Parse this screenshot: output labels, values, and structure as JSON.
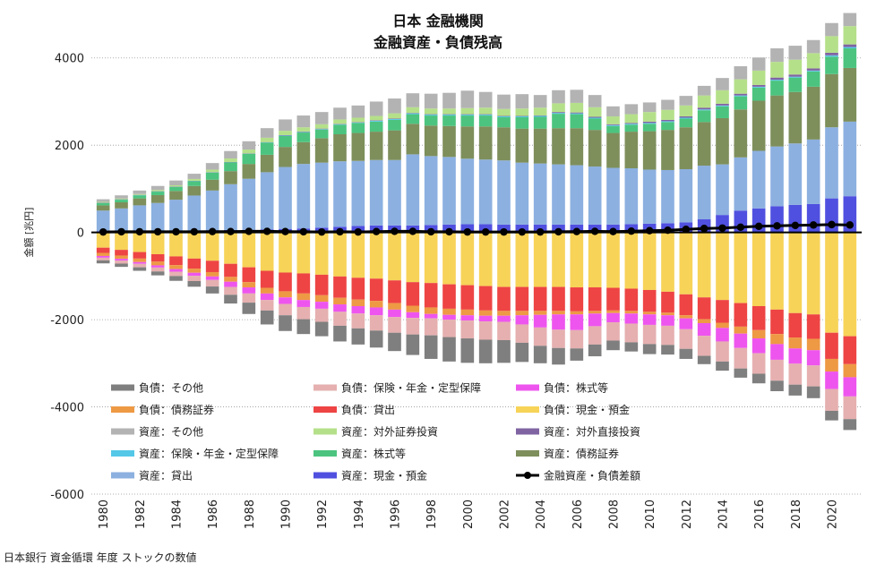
{
  "chart_data": {
    "type": "bar",
    "stacked": true,
    "title": "日本 金融機関",
    "subtitle": "金融資産・負債残高",
    "ylabel": "金額 [兆円]",
    "xlabel": "",
    "source_note": "日本銀行 資金循環 年度 ストックの数値",
    "ylim": [
      -6000,
      5000
    ],
    "yticks": [
      -6000,
      -4000,
      -2000,
      0,
      2000,
      4000
    ],
    "grid": true,
    "legend_position": "lower-left inside",
    "categories": [
      "1980",
      "1981",
      "1982",
      "1983",
      "1984",
      "1985",
      "1986",
      "1987",
      "1988",
      "1989",
      "1990",
      "1991",
      "1992",
      "1993",
      "1994",
      "1995",
      "1996",
      "1997",
      "1998",
      "1999",
      "2000",
      "2001",
      "2002",
      "2003",
      "2004",
      "2005",
      "2006",
      "2007",
      "2008",
      "2009",
      "2010",
      "2011",
      "2012",
      "2013",
      "2014",
      "2015",
      "2016",
      "2017",
      "2018",
      "2019",
      "2020",
      "2021"
    ],
    "xtick_labels": [
      "1980",
      "1982",
      "1984",
      "1986",
      "1988",
      "1990",
      "1992",
      "1994",
      "1996",
      "1998",
      "2000",
      "2002",
      "2004",
      "2006",
      "2008",
      "2010",
      "2012",
      "2014",
      "2016",
      "2018",
      "2020"
    ],
    "legend": [
      "負債：その他",
      "負債：保険・年金・定型保障",
      "負債：株式等",
      "負債：債務証券",
      "負債：貸出",
      "負債：現金・預金",
      "資産：その他",
      "資産：対外証券投資",
      "資産：対外直接投資",
      "資産：保険・年金・定型保障",
      "資産：株式等",
      "資産：債務証券",
      "資産：貸出",
      "資産：現金・預金",
      "金融資産・負債差額"
    ],
    "colors": {
      "負債：その他": "#7f7f7f",
      "負債：保険・年金・定型保障": "#e6b0b0",
      "負債：株式等": "#ee55ee",
      "負債：債務証券": "#ee9944",
      "負債：貸出": "#ee4444",
      "負債：現金・預金": "#f7d358",
      "資産：その他": "#b3b3b3",
      "資産：対外証券投資": "#b5e08a",
      "資産：対外直接投資": "#8064a2",
      "資産：保険・年金・定型保障": "#55c8e8",
      "資産：株式等": "#4cc47f",
      "資産：債務証券": "#7e8f5c",
      "資産：貸出": "#8cb0e0",
      "資産：現金・預金": "#5050e0",
      "金融資産・負債差額": "#000000"
    },
    "asset_series": [
      {
        "name": "資産：現金・預金",
        "values": [
          30,
          30,
          30,
          35,
          40,
          45,
          50,
          55,
          60,
          70,
          80,
          90,
          110,
          130,
          150,
          160,
          160,
          160,
          170,
          180,
          190,
          190,
          180,
          180,
          180,
          180,
          180,
          180,
          180,
          190,
          200,
          210,
          230,
          300,
          400,
          500,
          550,
          600,
          630,
          650,
          780,
          830
        ]
      },
      {
        "name": "資産：貸出",
        "values": [
          470,
          520,
          590,
          640,
          710,
          800,
          910,
          1050,
          1170,
          1310,
          1420,
          1480,
          1490,
          1500,
          1490,
          1500,
          1500,
          1630,
          1580,
          1550,
          1500,
          1480,
          1470,
          1420,
          1400,
          1380,
          1360,
          1330,
          1300,
          1280,
          1240,
          1220,
          1220,
          1230,
          1160,
          1220,
          1320,
          1370,
          1410,
          1480,
          1630,
          1710
        ]
      },
      {
        "name": "資産：債務証券",
        "values": [
          120,
          140,
          160,
          180,
          200,
          220,
          250,
          300,
          340,
          400,
          460,
          500,
          560,
          620,
          640,
          650,
          680,
          700,
          700,
          710,
          740,
          760,
          760,
          780,
          800,
          830,
          850,
          840,
          800,
          840,
          880,
          920,
          960,
          1000,
          1060,
          1100,
          1150,
          1170,
          1180,
          1210,
          1220,
          1230
        ]
      },
      {
        "name": "資産：株式等",
        "values": [
          50,
          60,
          70,
          80,
          90,
          110,
          160,
          200,
          230,
          280,
          250,
          220,
          200,
          220,
          230,
          230,
          240,
          220,
          230,
          240,
          250,
          250,
          230,
          260,
          270,
          330,
          320,
          260,
          160,
          160,
          170,
          180,
          200,
          270,
          270,
          300,
          300,
          340,
          330,
          350,
          400,
          450
        ]
      },
      {
        "name": "資産：保険・年金・定型保障",
        "values": [
          5,
          5,
          5,
          5,
          5,
          5,
          5,
          5,
          5,
          5,
          10,
          10,
          10,
          10,
          10,
          20,
          20,
          20,
          20,
          20,
          20,
          20,
          20,
          20,
          20,
          20,
          20,
          20,
          20,
          20,
          20,
          20,
          20,
          20,
          20,
          20,
          20,
          20,
          20,
          20,
          30,
          30
        ]
      },
      {
        "name": "資産：対外直接投資",
        "values": [
          5,
          5,
          5,
          5,
          5,
          5,
          5,
          5,
          5,
          5,
          10,
          10,
          10,
          10,
          10,
          10,
          10,
          10,
          10,
          10,
          10,
          10,
          10,
          10,
          10,
          20,
          20,
          20,
          20,
          20,
          30,
          30,
          30,
          40,
          40,
          40,
          40,
          50,
          50,
          50,
          60,
          60
        ]
      },
      {
        "name": "資産：対外証券投資",
        "values": [
          20,
          20,
          20,
          30,
          30,
          40,
          60,
          80,
          90,
          100,
          100,
          100,
          100,
          100,
          100,
          100,
          120,
          130,
          130,
          130,
          140,
          150,
          160,
          170,
          180,
          200,
          220,
          220,
          180,
          200,
          220,
          230,
          250,
          280,
          310,
          330,
          330,
          360,
          340,
          350,
          380,
          420
        ]
      },
      {
        "name": "資産：その他",
        "values": [
          60,
          70,
          80,
          90,
          110,
          120,
          150,
          170,
          190,
          220,
          260,
          270,
          280,
          270,
          280,
          330,
          340,
          320,
          340,
          360,
          400,
          360,
          330,
          330,
          290,
          300,
          300,
          280,
          230,
          230,
          220,
          230,
          220,
          220,
          280,
          300,
          300,
          310,
          320,
          300,
          300,
          300
        ]
      }
    ],
    "liability_series": [
      {
        "name": "負債：現金・預金",
        "values": [
          -350,
          -400,
          -450,
          -500,
          -550,
          -600,
          -650,
          -720,
          -800,
          -880,
          -920,
          -940,
          -970,
          -1010,
          -1040,
          -1060,
          -1100,
          -1140,
          -1160,
          -1190,
          -1210,
          -1230,
          -1250,
          -1250,
          -1250,
          -1250,
          -1260,
          -1260,
          -1270,
          -1290,
          -1320,
          -1360,
          -1420,
          -1490,
          -1550,
          -1620,
          -1690,
          -1770,
          -1850,
          -1880,
          -2300,
          -2380
        ]
      },
      {
        "name": "負債：貸出",
        "values": [
          -120,
          -130,
          -150,
          -170,
          -200,
          -230,
          -260,
          -300,
          -340,
          -390,
          -430,
          -460,
          -470,
          -490,
          -500,
          -510,
          -520,
          -540,
          -560,
          -560,
          -560,
          -560,
          -550,
          -550,
          -550,
          -550,
          -550,
          -540,
          -520,
          -510,
          -500,
          -480,
          -480,
          -500,
          -520,
          -540,
          -550,
          -560,
          -560,
          -560,
          -600,
          -640
        ]
      },
      {
        "name": "負債：債務証券",
        "values": [
          -70,
          -75,
          -80,
          -85,
          -90,
          -95,
          -100,
          -110,
          -120,
          -130,
          -140,
          -150,
          -150,
          -150,
          -150,
          -150,
          -150,
          -150,
          -150,
          -140,
          -130,
          -120,
          -110,
          -100,
          -90,
          -80,
          -70,
          -60,
          -60,
          -60,
          -60,
          -60,
          -70,
          -90,
          -120,
          -160,
          -190,
          -230,
          -250,
          -260,
          -290,
          -300
        ]
      },
      {
        "name": "負債：株式等",
        "values": [
          -40,
          -40,
          -40,
          -50,
          -60,
          -70,
          -80,
          -120,
          -140,
          -150,
          -150,
          -160,
          -160,
          -170,
          -170,
          -180,
          -170,
          -130,
          -100,
          -110,
          -120,
          -130,
          -140,
          -210,
          -290,
          -350,
          -360,
          -290,
          -210,
          -230,
          -240,
          -240,
          -250,
          -290,
          -310,
          -330,
          -340,
          -360,
          -350,
          -350,
          -400,
          -440
        ]
      },
      {
        "name": "負債：保険・年金・定型保障",
        "values": [
          -60,
          -70,
          -80,
          -90,
          -100,
          -120,
          -150,
          -180,
          -210,
          -240,
          -260,
          -280,
          -300,
          -320,
          -340,
          -350,
          -360,
          -380,
          -390,
          -400,
          -410,
          -420,
          -420,
          -420,
          -420,
          -420,
          -420,
          -420,
          -420,
          -430,
          -440,
          -440,
          -450,
          -460,
          -460,
          -470,
          -470,
          -480,
          -480,
          -480,
          -500,
          -520
        ]
      },
      {
        "name": "負債：その他",
        "values": [
          -70,
          -75,
          -80,
          -90,
          -110,
          -130,
          -160,
          -200,
          -260,
          -320,
          -360,
          -340,
          -330,
          -360,
          -370,
          -390,
          -420,
          -470,
          -540,
          -560,
          -560,
          -540,
          -520,
          -440,
          -400,
          -380,
          -280,
          -270,
          -220,
          -210,
          -230,
          -220,
          -230,
          -190,
          -210,
          -210,
          -220,
          -240,
          -250,
          -270,
          -220,
          -250
        ]
      }
    ],
    "net_series": {
      "name": "金融資産・負債差額",
      "values": [
        10,
        15,
        15,
        15,
        15,
        15,
        20,
        20,
        25,
        25,
        20,
        15,
        10,
        15,
        10,
        20,
        25,
        25,
        15,
        15,
        10,
        10,
        10,
        10,
        10,
        15,
        20,
        25,
        20,
        30,
        40,
        50,
        70,
        90,
        100,
        120,
        140,
        150,
        160,
        170,
        180,
        170
      ]
    }
  }
}
